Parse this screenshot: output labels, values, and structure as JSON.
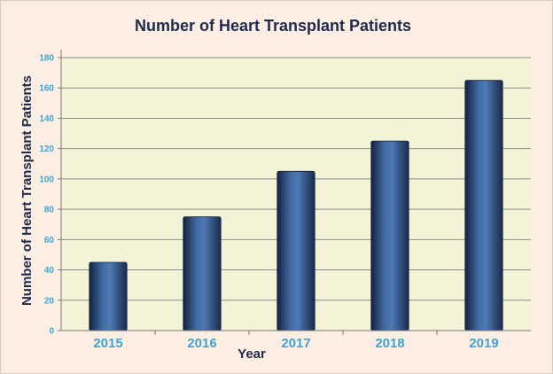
{
  "chart_data": {
    "type": "bar",
    "title": "Number of Heart Transplant Patients",
    "xlabel": "Year",
    "ylabel": "Number of Heart Transplant  Patients",
    "categories": [
      "2015",
      "2016",
      "2017",
      "2018",
      "2019"
    ],
    "values": [
      45,
      75,
      105,
      125,
      165
    ],
    "ylim": [
      0,
      180
    ],
    "yticks": [
      "0",
      "20",
      "40",
      "60",
      "80",
      "100",
      "120",
      "140",
      "160",
      "180"
    ],
    "grid": true,
    "legend": "none",
    "colors": {
      "background": "#fdeee3",
      "plot_area": "#f2f3d7",
      "bar": "#2e4f7d",
      "title": "#1f2a4d",
      "tick_labels": "#3aa6d8",
      "gridline": "#8c8c8c"
    }
  }
}
